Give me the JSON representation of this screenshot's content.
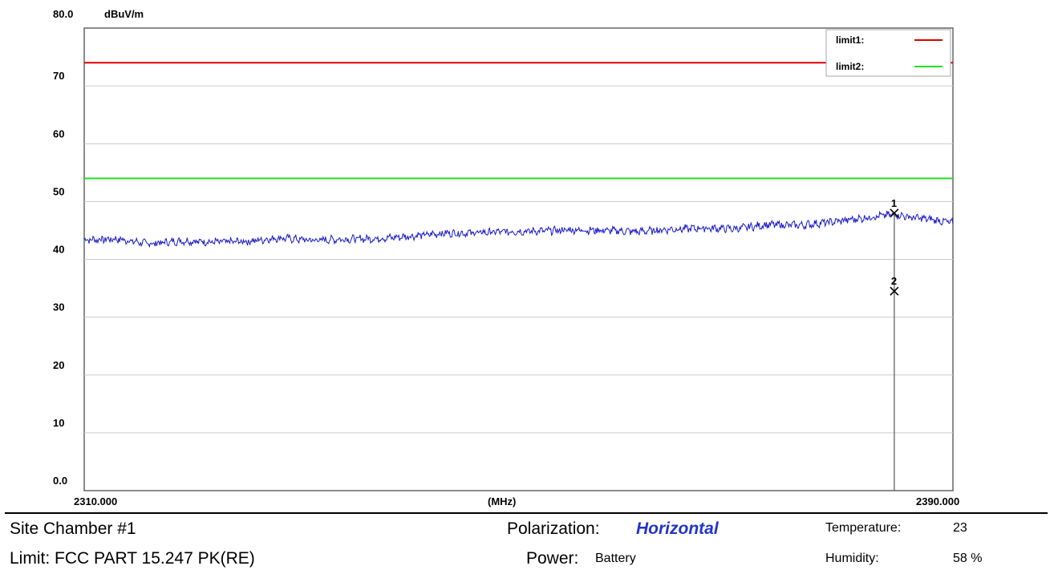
{
  "chart_data": {
    "type": "line",
    "top_label": "80.0",
    "unit_label": "dBuV/m",
    "x_axis_label": "(MHz)",
    "x_range": [
      2310,
      2390
    ],
    "y_range": [
      0,
      80
    ],
    "x_start_label": "2310.000",
    "x_end_label": "2390.000",
    "y_ticks": [
      "0.0",
      "10",
      "20",
      "30",
      "40",
      "50",
      "60",
      "70"
    ],
    "grid": true,
    "legend_position": "top-right",
    "limits": [
      {
        "name": "limit1:",
        "value": 74,
        "color": "#dd0000"
      },
      {
        "name": "limit2:",
        "value": 54,
        "color": "#22dd22"
      }
    ],
    "series": [
      {
        "color": "#1a1acc",
        "x": [
          2310,
          2313,
          2316,
          2319,
          2322,
          2325,
          2328,
          2331,
          2334,
          2337,
          2340,
          2343,
          2346,
          2349,
          2352,
          2355,
          2358,
          2361,
          2364,
          2367,
          2370,
          2373,
          2376,
          2379,
          2382,
          2384.6,
          2386,
          2388,
          2390
        ],
        "y": [
          43.4,
          43.5,
          42.7,
          43.2,
          43.0,
          43.1,
          43.7,
          43.3,
          43.5,
          43.6,
          44.0,
          44.5,
          44.6,
          44.8,
          44.9,
          45.1,
          45.0,
          44.8,
          45.2,
          45.4,
          45.3,
          46.0,
          45.9,
          46.5,
          47.2,
          47.8,
          47.3,
          46.9,
          46.3
        ]
      }
    ],
    "markers": [
      {
        "label": "1",
        "x": 2384.6,
        "y": 48.0
      },
      {
        "label": "2",
        "x": 2384.6,
        "y": 34.5
      }
    ]
  },
  "footer": {
    "site": "Site  Chamber #1",
    "limit": "Limit:  FCC PART 15.247 PK(RE)",
    "polarization_label": "Polarization:",
    "polarization_value": "Horizontal",
    "power_label": "Power:",
    "power_value": "Battery",
    "temperature_label": "Temperature:",
    "temperature_value": "23",
    "humidity_label": "Humidity:",
    "humidity_value": "58 %"
  }
}
